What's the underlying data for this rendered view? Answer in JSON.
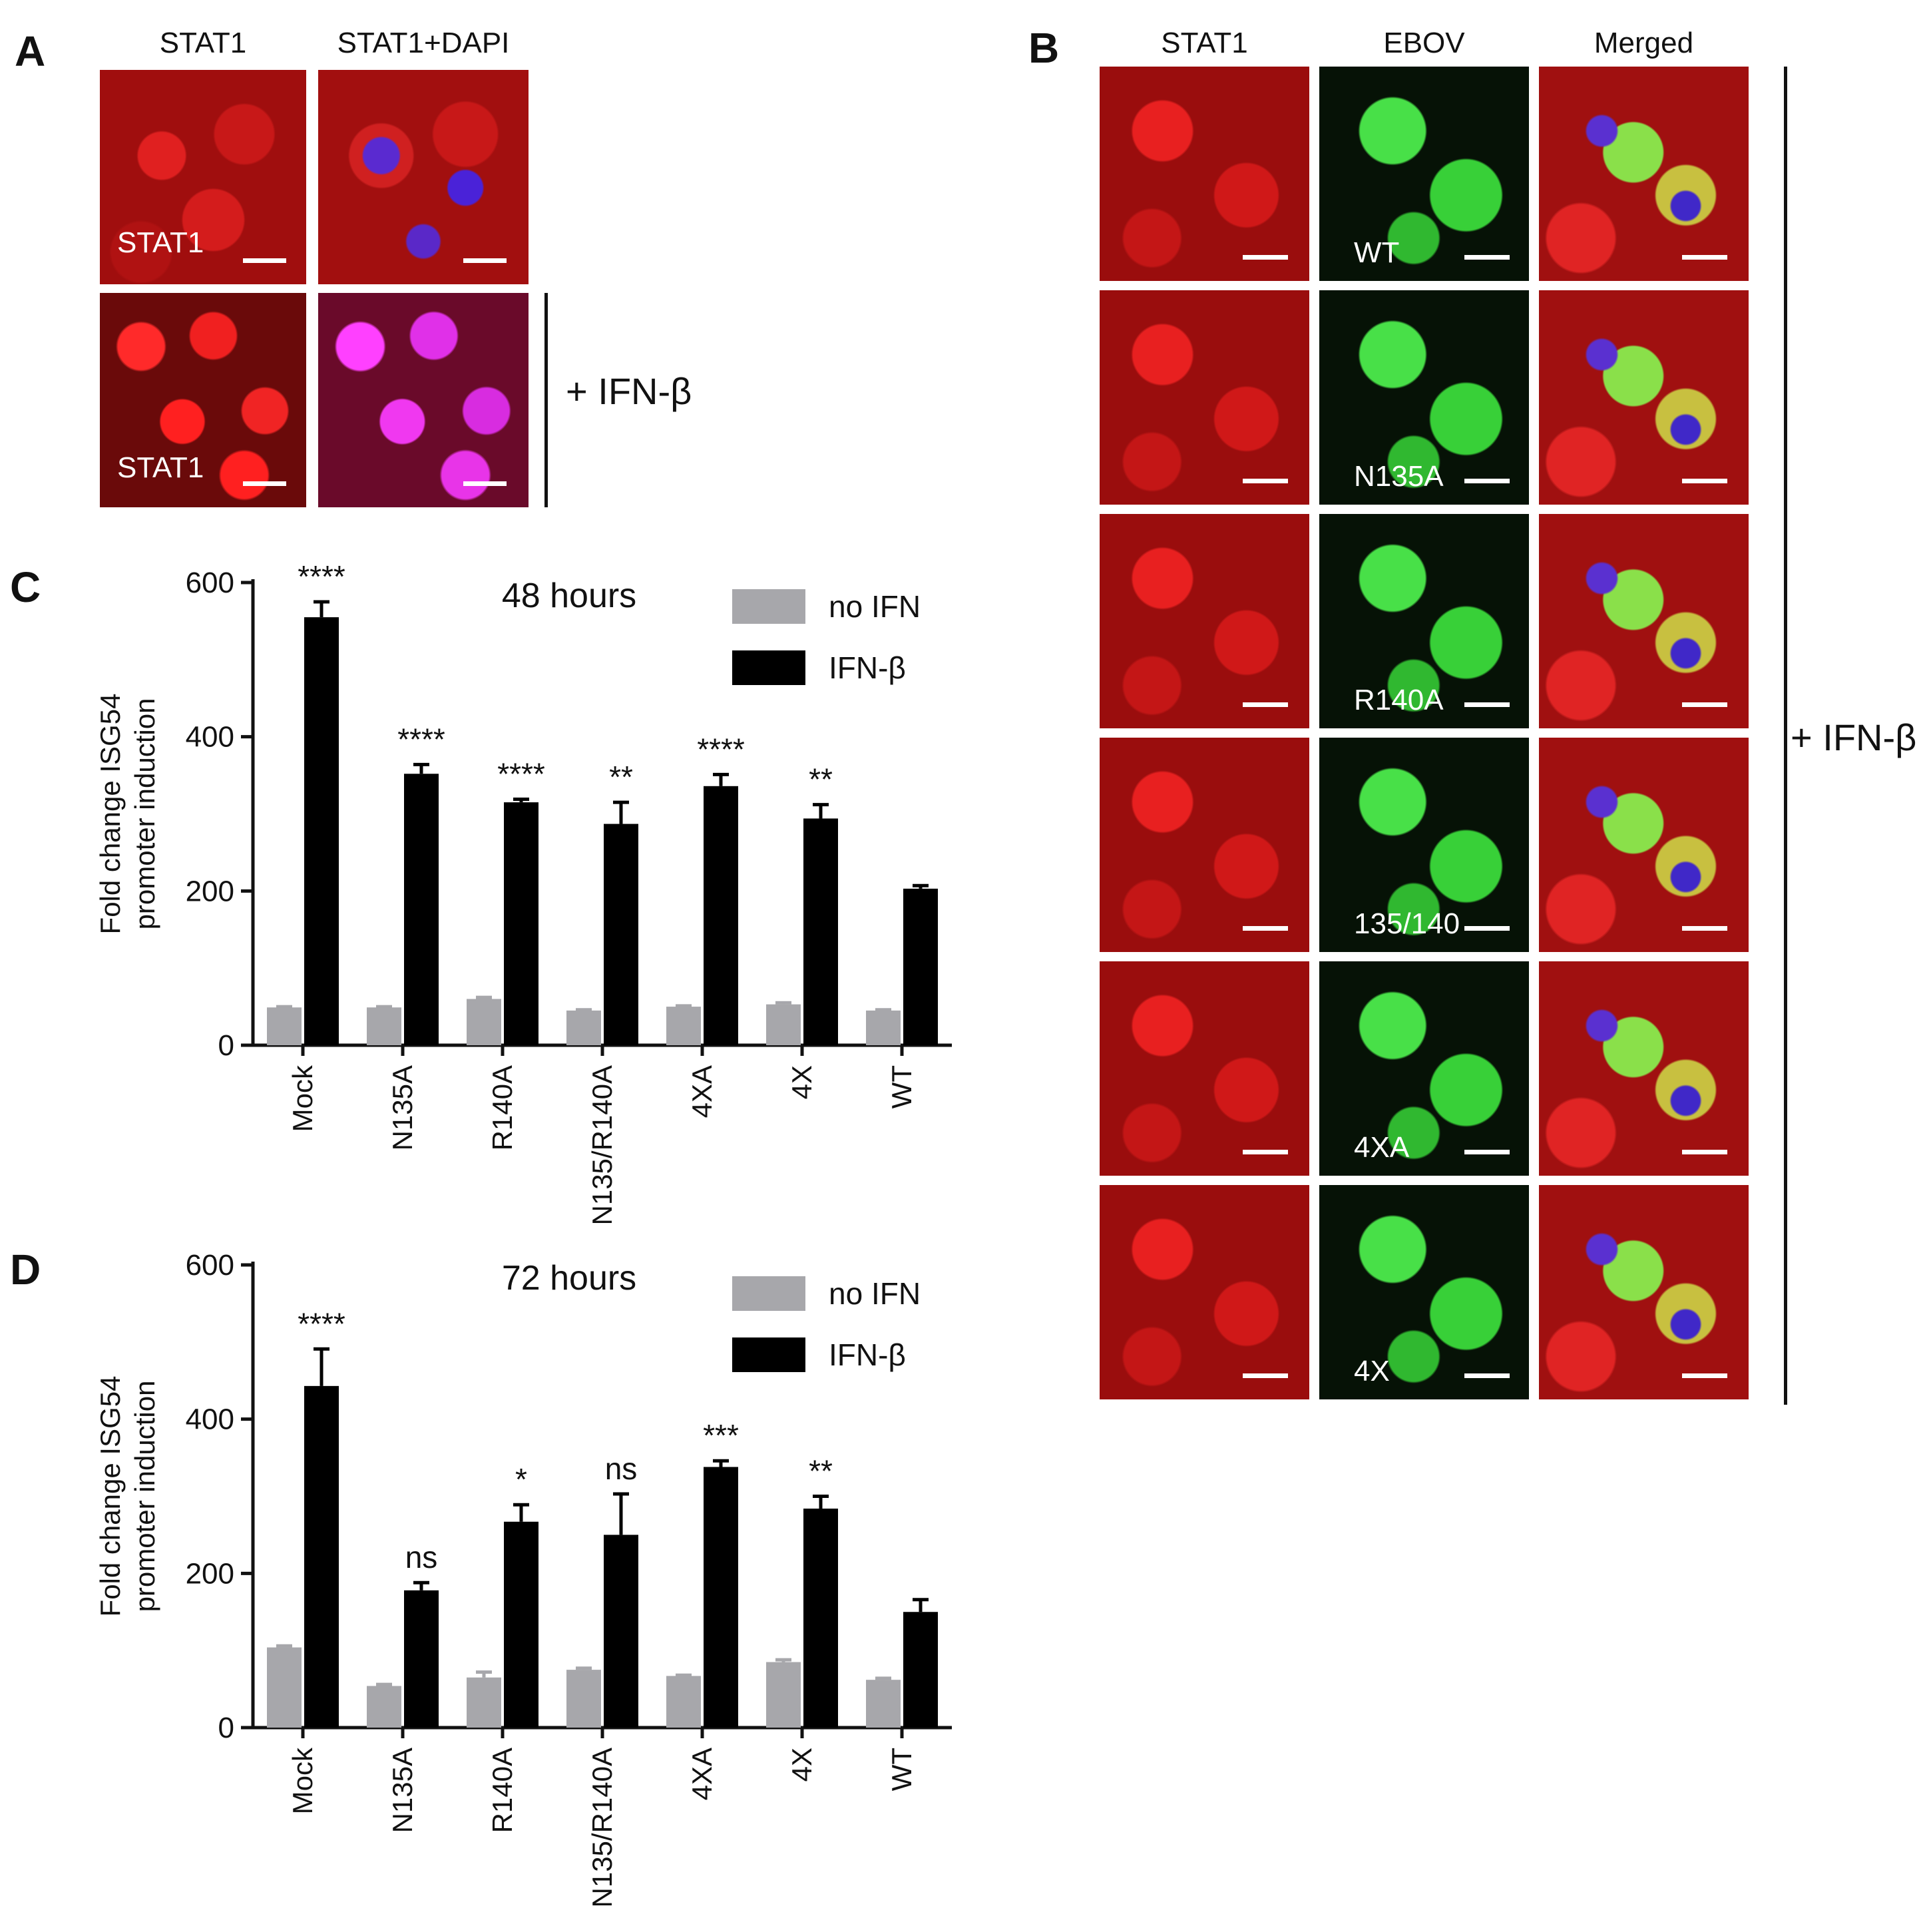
{
  "panel_a": {
    "label": "A",
    "col_headers": [
      "STAT1",
      "STAT1+DAPI"
    ],
    "tile_labels": [
      "STAT1",
      "STAT1"
    ],
    "treatment": "+ IFN-β"
  },
  "panel_b": {
    "label": "B",
    "col_headers": [
      "STAT1",
      "EBOV",
      "Merged"
    ],
    "rows": [
      "WT",
      "N135A",
      "R140A",
      "135/140",
      "4XA",
      "4X"
    ],
    "treatment": "+ IFN-β"
  },
  "colors": {
    "no_ifn": "#a7a7ab",
    "ifn_beta": "#000000",
    "stat1_red": "#e01010",
    "ebov_green": "#3ce23c",
    "dapi_blue": "#3020d8"
  },
  "chart_data": [
    {
      "panel": "C",
      "type": "bar",
      "title": "48 hours",
      "ylabel": "Fold change ISG54 promoter induction",
      "ylim": [
        0,
        600
      ],
      "yticks": [
        0,
        200,
        400,
        600
      ],
      "categories": [
        "Mock",
        "N135A",
        "R140A",
        "N135/R140A",
        "4XA",
        "4X",
        "WT"
      ],
      "series": [
        {
          "name": "no IFN",
          "color": "#a7a7ab",
          "values": [
            49,
            49,
            60,
            45,
            50,
            53,
            45
          ],
          "errors": [
            1,
            1,
            2,
            1,
            1,
            2,
            1
          ]
        },
        {
          "name": "IFN-β",
          "color": "#000000",
          "values": [
            555,
            352,
            315,
            287,
            336,
            294,
            203
          ],
          "errors": [
            20,
            12,
            4,
            28,
            15,
            18,
            4
          ]
        }
      ],
      "annotations": [
        "****",
        "****",
        "****",
        "**",
        "****",
        "**",
        ""
      ],
      "legend": "top-right"
    },
    {
      "panel": "D",
      "type": "bar",
      "title": "72 hours",
      "ylabel": "Fold change ISG54 promoter induction",
      "ylim": [
        0,
        600
      ],
      "yticks": [
        0,
        200,
        400,
        600
      ],
      "categories": [
        "Mock",
        "N135A",
        "R140A",
        "N135/R140A",
        "4XA",
        "4X",
        "WT"
      ],
      "series": [
        {
          "name": "no IFN",
          "color": "#a7a7ab",
          "values": [
            104,
            54,
            65,
            75,
            67,
            85,
            62
          ],
          "errors": [
            2,
            2,
            7,
            2,
            1,
            3,
            2
          ]
        },
        {
          "name": "IFN-β",
          "color": "#000000",
          "values": [
            443,
            178,
            267,
            250,
            338,
            284,
            150
          ],
          "errors": [
            48,
            10,
            22,
            53,
            8,
            16,
            16
          ]
        }
      ],
      "annotations": [
        "****",
        "ns",
        "*",
        "ns",
        "***",
        "**",
        ""
      ],
      "legend": "top-right"
    }
  ]
}
